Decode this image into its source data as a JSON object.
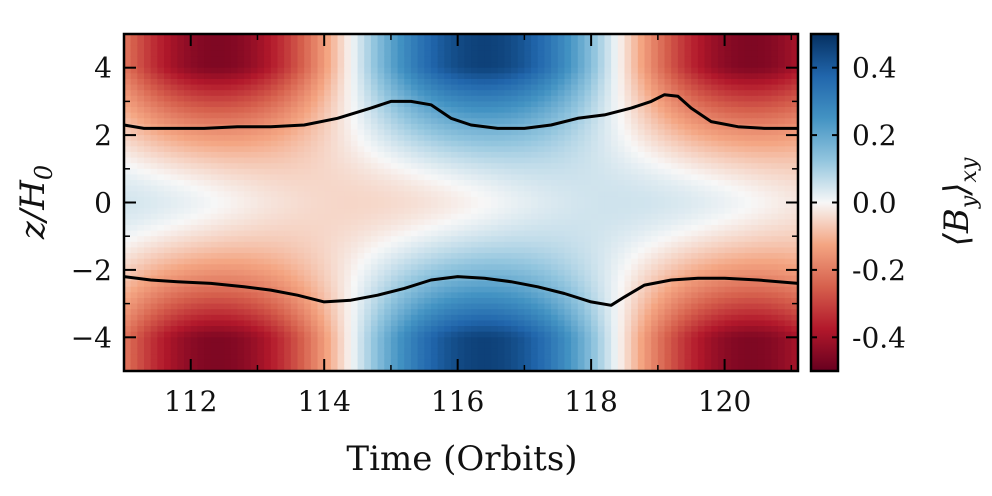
{
  "chart_data": {
    "type": "heatmap",
    "xlabel": "Time (Orbits)",
    "ylabel": "z/H",
    "ylabel_subscript": "0",
    "colorbar_label": "⟨B",
    "colorbar_label_subscript": "y",
    "colorbar_label_close": "⟩",
    "colorbar_label_suffix": "xy",
    "colormap": "RdBu (red = negative, blue = positive)",
    "xlim": [
      111,
      121.1
    ],
    "ylim": [
      -5,
      5
    ],
    "clim": [
      -0.5,
      0.5
    ],
    "x_ticks": [
      112,
      114,
      116,
      118,
      120
    ],
    "x_tick_labels": [
      "112",
      "114",
      "116",
      "118",
      "120"
    ],
    "y_ticks": [
      4,
      2,
      0,
      -2,
      -4
    ],
    "y_tick_labels": [
      "4",
      "2",
      "0",
      "−2",
      "−4"
    ],
    "colorbar_ticks": [
      0.4,
      0.2,
      0.0,
      -0.2,
      -0.4
    ],
    "colorbar_tick_labels": [
      "0.4",
      "0.2",
      "0.0",
      "-0.2",
      "-0.4"
    ],
    "contours": [
      {
        "name": "upper boundary",
        "x": [
          111.0,
          111.3,
          111.7,
          112.2,
          112.7,
          113.2,
          113.7,
          114.2,
          114.7,
          115.0,
          115.3,
          115.6,
          115.9,
          116.2,
          116.6,
          117.0,
          117.4,
          117.8,
          118.2,
          118.6,
          118.9,
          119.1,
          119.3,
          119.5,
          119.8,
          120.2,
          120.6,
          121.1
        ],
        "y": [
          2.3,
          2.2,
          2.2,
          2.2,
          2.25,
          2.25,
          2.3,
          2.5,
          2.8,
          3.0,
          3.0,
          2.9,
          2.5,
          2.3,
          2.2,
          2.2,
          2.3,
          2.5,
          2.6,
          2.8,
          3.0,
          3.2,
          3.15,
          2.8,
          2.4,
          2.25,
          2.2,
          2.2
        ]
      },
      {
        "name": "lower boundary",
        "x": [
          111.0,
          111.4,
          111.8,
          112.3,
          112.8,
          113.2,
          113.6,
          114.0,
          114.4,
          114.8,
          115.2,
          115.6,
          116.0,
          116.4,
          116.8,
          117.2,
          117.6,
          118.0,
          118.3,
          118.5,
          118.8,
          119.2,
          119.6,
          120.0,
          120.5,
          121.1
        ],
        "y": [
          -2.2,
          -2.3,
          -2.35,
          -2.4,
          -2.5,
          -2.6,
          -2.75,
          -2.95,
          -2.9,
          -2.75,
          -2.55,
          -2.3,
          -2.2,
          -2.25,
          -2.35,
          -2.5,
          -2.7,
          -2.95,
          -3.05,
          -2.8,
          -2.45,
          -2.3,
          -2.25,
          -2.25,
          -2.3,
          -2.4
        ]
      }
    ],
    "grid": false,
    "legend": "colorbar on right"
  }
}
